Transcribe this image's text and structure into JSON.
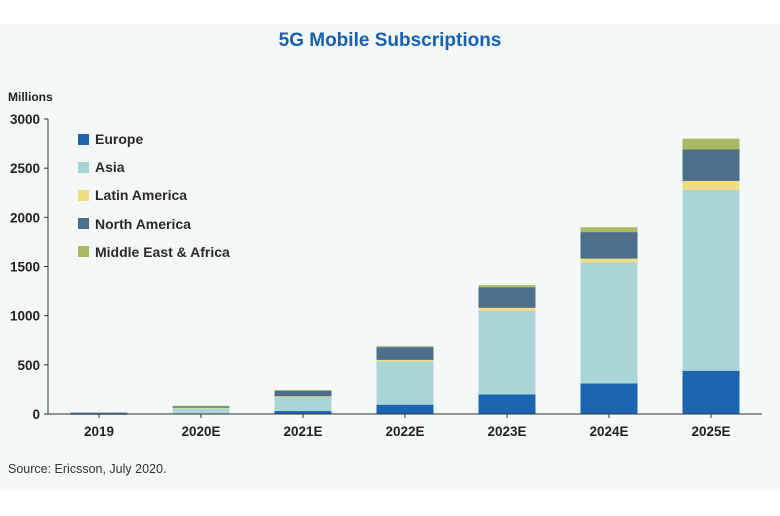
{
  "title": "5G Mobile Subscriptions",
  "units_label": "Millions",
  "source": "Source: Ericsson, July 2020.",
  "chart_data": {
    "type": "bar",
    "stacked": true,
    "title": "5G Mobile Subscriptions",
    "xlabel": "",
    "ylabel": "Millions",
    "ylim": [
      0,
      3000
    ],
    "yticks": [
      "0",
      "500",
      "1000",
      "1500",
      "2000",
      "2500",
      "3000"
    ],
    "ytick_values": [
      0,
      500,
      1000,
      1500,
      2000,
      2500,
      3000
    ],
    "grid": false,
    "legend_position": "top-left",
    "categories": [
      "2019",
      "2020E",
      "2021E",
      "2022E",
      "2023E",
      "2024E",
      "2025E"
    ],
    "series": [
      {
        "name": "Europe",
        "color": "#1b64b0",
        "values": [
          1,
          3,
          30,
          95,
          200,
          310,
          440
        ]
      },
      {
        "name": "Asia",
        "color": "#aad5d7",
        "values": [
          10,
          60,
          145,
          440,
          850,
          1230,
          1840
        ]
      },
      {
        "name": "Latin America",
        "color": "#efdc80",
        "values": [
          0,
          1,
          5,
          15,
          30,
          40,
          90
        ]
      },
      {
        "name": "North America",
        "color": "#4d6f8a",
        "values": [
          3,
          18,
          60,
          130,
          210,
          270,
          320
        ]
      },
      {
        "name": "Middle East & Africa",
        "color": "#a9b964",
        "values": [
          0,
          1,
          3,
          10,
          20,
          50,
          110
        ]
      }
    ]
  }
}
